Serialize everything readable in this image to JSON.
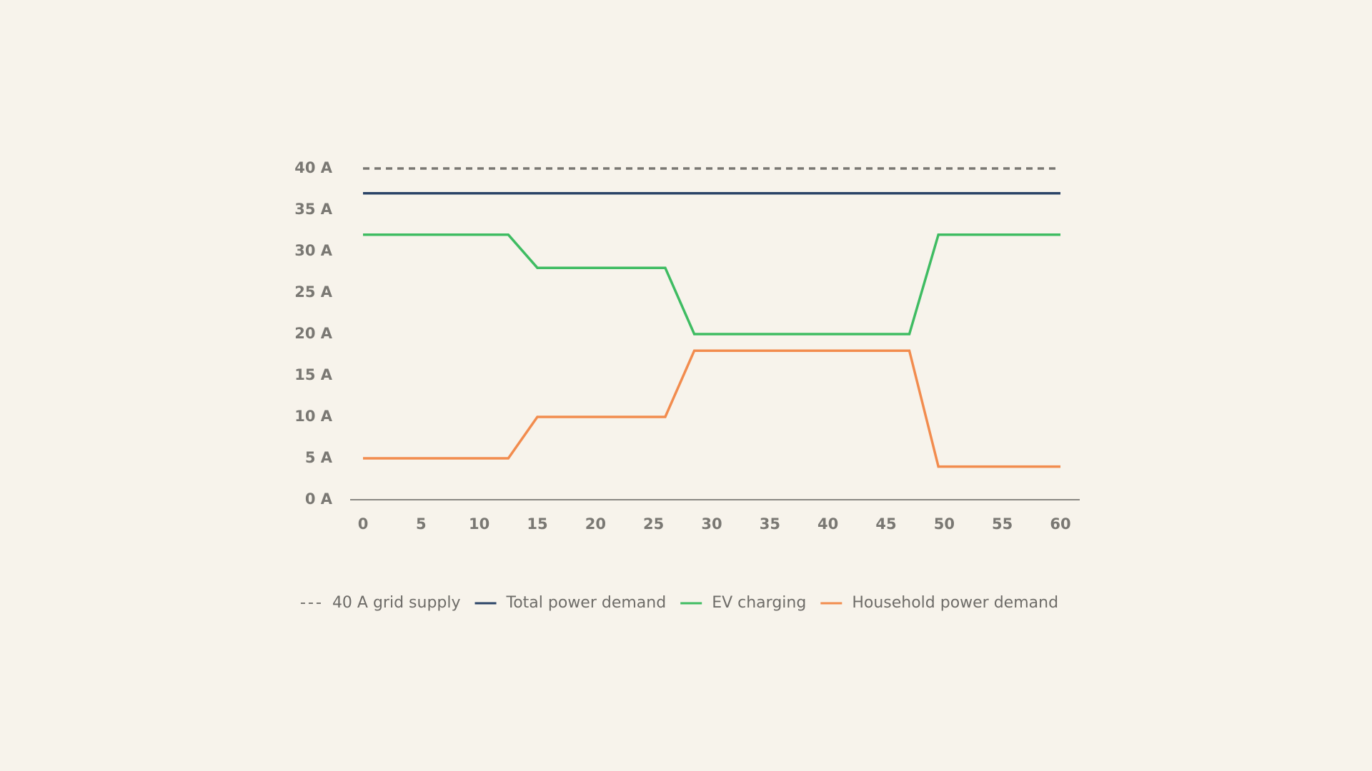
{
  "chart_data": {
    "type": "line",
    "xlim": [
      0,
      60
    ],
    "xticks": [
      0,
      5,
      10,
      15,
      20,
      25,
      30,
      35,
      40,
      45,
      50,
      55,
      60
    ],
    "ylim": [
      0,
      40
    ],
    "yticks": [
      {
        "value": 0,
        "label": "0 A"
      },
      {
        "value": 5,
        "label": "5 A"
      },
      {
        "value": 10,
        "label": "10 A"
      },
      {
        "value": 15,
        "label": "15 A"
      },
      {
        "value": 20,
        "label": "20 A"
      },
      {
        "value": 25,
        "label": "25 A"
      },
      {
        "value": 30,
        "label": "30 A"
      },
      {
        "value": 35,
        "label": "35 A"
      },
      {
        "value": 40,
        "label": "40 A"
      }
    ],
    "legend": "bottom",
    "series": [
      {
        "name": "40 A grid supply",
        "color": "#7a7873",
        "dashed": true,
        "x": [
          0,
          60
        ],
        "values": [
          40,
          40
        ]
      },
      {
        "name": "Total power demand",
        "color": "#2b4467",
        "dashed": false,
        "x": [
          0,
          60
        ],
        "values": [
          37,
          37
        ]
      },
      {
        "name": "EV charging",
        "color": "#3fbc62",
        "dashed": false,
        "x": [
          0,
          12.5,
          15,
          26,
          28.5,
          47,
          49.5,
          60
        ],
        "values": [
          32,
          32,
          28,
          28,
          20,
          20,
          32,
          32
        ]
      },
      {
        "name": "Household power demand",
        "color": "#f28c4e",
        "dashed": false,
        "x": [
          0,
          12.5,
          15,
          26,
          28.5,
          47,
          49.5,
          60
        ],
        "values": [
          5,
          5,
          10,
          10,
          18,
          18,
          4,
          4
        ]
      }
    ]
  }
}
